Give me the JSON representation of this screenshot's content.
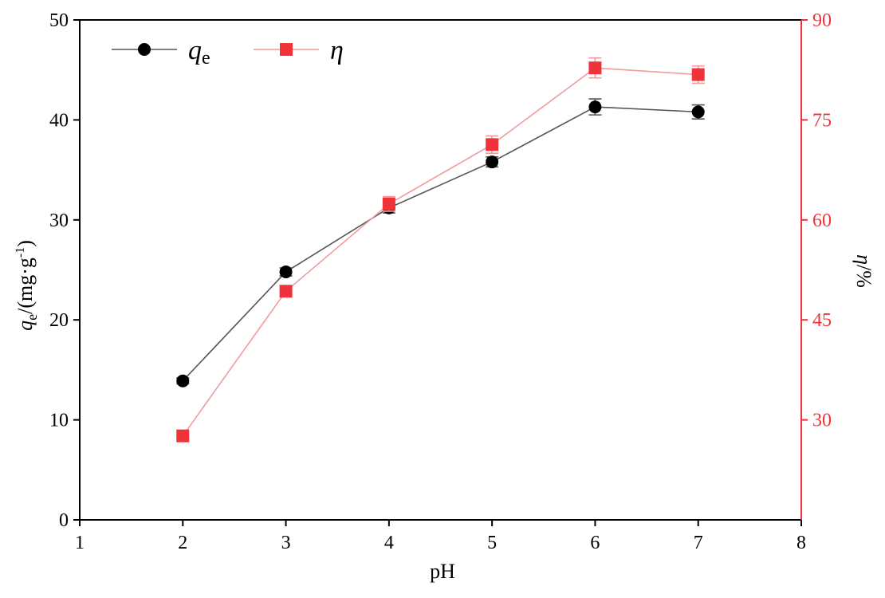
{
  "chart_data": {
    "type": "line",
    "xlabel": "pH",
    "ylabel": {
      "symbol": "q",
      "subscript": "e",
      "unit_open": "/(mg·g",
      "superscript": "-1",
      "unit_close": ")"
    },
    "ylabel_right": {
      "symbol": "η",
      "unit": "/%"
    },
    "xlim": [
      1,
      8
    ],
    "ylim": [
      0,
      50
    ],
    "ylim_right": [
      15,
      90
    ],
    "x_ticks": [
      "1",
      "2",
      "3",
      "4",
      "5",
      "6",
      "7",
      "8"
    ],
    "y_ticks": [
      "0",
      "10",
      "20",
      "30",
      "40",
      "50"
    ],
    "y_ticks_right": [
      "30",
      "45",
      "60",
      "75",
      "90"
    ],
    "grid": false,
    "legend_position": "top-left",
    "x": [
      2,
      3,
      4,
      5,
      6,
      7
    ],
    "series": [
      {
        "name": "q",
        "name_sub": "e",
        "axis": "left",
        "marker": "circle",
        "color": "#000000",
        "line_color": "#555555",
        "values": [
          13.9,
          24.8,
          31.2,
          35.8,
          41.3,
          40.8
        ],
        "errors": [
          0.3,
          0.4,
          0.5,
          0.5,
          0.8,
          0.7
        ]
      },
      {
        "name": "η",
        "axis": "right",
        "marker": "square",
        "color": "#f0333a",
        "line_color": "#f29a9e",
        "values": [
          27.6,
          49.3,
          62.4,
          71.3,
          82.8,
          81.8
        ],
        "errors": [
          0.6,
          0.7,
          1.1,
          1.3,
          1.5,
          1.3
        ]
      }
    ],
    "colors": {
      "axis_left": "#000000",
      "axis_right": "#f0333a"
    }
  }
}
